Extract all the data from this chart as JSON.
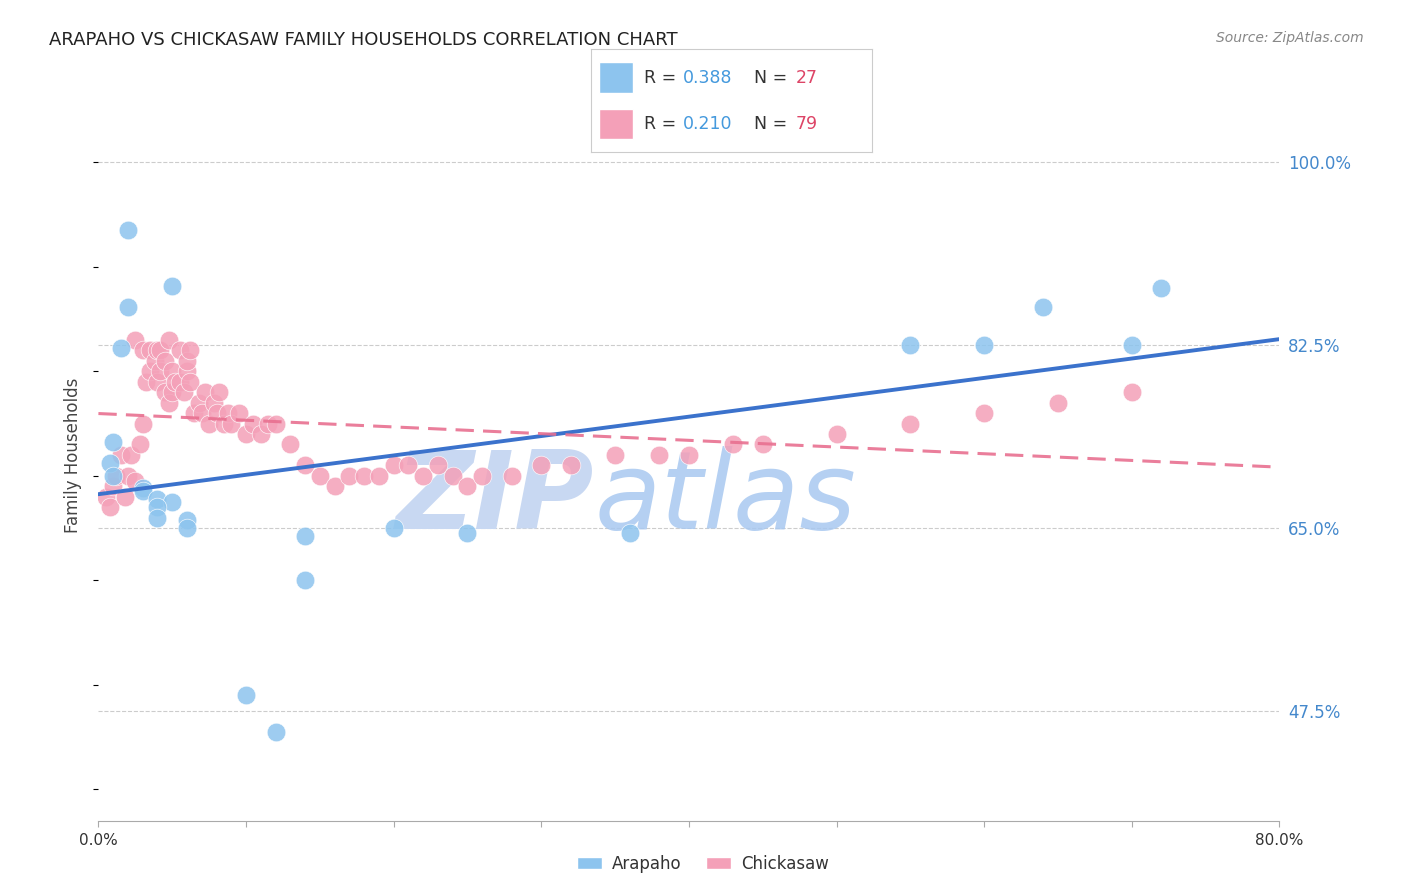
{
  "title": "ARAPAHO VS CHICKASAW FAMILY HOUSEHOLDS CORRELATION CHART",
  "source": "Source: ZipAtlas.com",
  "ylabel": "Family Households",
  "xmin": 0.0,
  "xmax": 0.8,
  "ymin": 0.37,
  "ymax": 1.07,
  "ytick_values": [
    0.475,
    0.65,
    0.825,
    1.0
  ],
  "ytick_labels": [
    "47.5%",
    "65.0%",
    "82.5%",
    "100.0%"
  ],
  "xtick_values": [
    0.0,
    0.1,
    0.2,
    0.3,
    0.4,
    0.5,
    0.6,
    0.7,
    0.8
  ],
  "xtick_labels": [
    "0.0%",
    "",
    "",
    "",
    "",
    "",
    "",
    "",
    "80.0%"
  ],
  "arapaho_color": "#8DC4EE",
  "chickasaw_color": "#F4A0B8",
  "arapaho_line_color": "#3B72CC",
  "chickasaw_line_color": "#E87090",
  "arapaho_R": 0.388,
  "arapaho_N": 27,
  "chickasaw_R": 0.21,
  "chickasaw_N": 79,
  "legend_R_color": "#4499DD",
  "legend_N_color": "#DD4466",
  "arapaho_x": [
    0.02,
    0.05,
    0.02,
    0.015,
    0.01,
    0.008,
    0.01,
    0.03,
    0.03,
    0.04,
    0.05,
    0.04,
    0.04,
    0.06,
    0.06,
    0.14,
    0.14,
    0.2,
    0.55,
    0.6,
    0.64,
    0.7,
    0.72,
    0.1,
    0.12,
    0.25,
    0.36
  ],
  "arapaho_y": [
    0.935,
    0.882,
    0.862,
    0.822,
    0.732,
    0.712,
    0.7,
    0.688,
    0.685,
    0.678,
    0.675,
    0.67,
    0.66,
    0.658,
    0.65,
    0.642,
    0.6,
    0.65,
    0.825,
    0.825,
    0.862,
    0.825,
    0.88,
    0.49,
    0.455,
    0.645,
    0.645
  ],
  "chickasaw_x": [
    0.005,
    0.008,
    0.01,
    0.012,
    0.015,
    0.018,
    0.02,
    0.022,
    0.025,
    0.025,
    0.028,
    0.03,
    0.03,
    0.032,
    0.035,
    0.035,
    0.038,
    0.04,
    0.04,
    0.042,
    0.042,
    0.045,
    0.045,
    0.048,
    0.048,
    0.05,
    0.05,
    0.052,
    0.055,
    0.055,
    0.058,
    0.06,
    0.06,
    0.062,
    0.062,
    0.065,
    0.068,
    0.07,
    0.072,
    0.075,
    0.078,
    0.08,
    0.082,
    0.085,
    0.088,
    0.09,
    0.095,
    0.1,
    0.105,
    0.11,
    0.115,
    0.12,
    0.13,
    0.14,
    0.15,
    0.16,
    0.17,
    0.18,
    0.19,
    0.2,
    0.21,
    0.22,
    0.23,
    0.24,
    0.25,
    0.26,
    0.28,
    0.3,
    0.32,
    0.35,
    0.38,
    0.4,
    0.43,
    0.45,
    0.5,
    0.55,
    0.6,
    0.65,
    0.7
  ],
  "chickasaw_y": [
    0.68,
    0.67,
    0.69,
    0.7,
    0.72,
    0.68,
    0.7,
    0.72,
    0.83,
    0.695,
    0.73,
    0.75,
    0.82,
    0.79,
    0.82,
    0.8,
    0.81,
    0.79,
    0.82,
    0.82,
    0.8,
    0.81,
    0.78,
    0.77,
    0.83,
    0.78,
    0.8,
    0.79,
    0.79,
    0.82,
    0.78,
    0.8,
    0.81,
    0.79,
    0.82,
    0.76,
    0.77,
    0.76,
    0.78,
    0.75,
    0.77,
    0.76,
    0.78,
    0.75,
    0.76,
    0.75,
    0.76,
    0.74,
    0.75,
    0.74,
    0.75,
    0.75,
    0.73,
    0.71,
    0.7,
    0.69,
    0.7,
    0.7,
    0.7,
    0.71,
    0.71,
    0.7,
    0.71,
    0.7,
    0.69,
    0.7,
    0.7,
    0.71,
    0.71,
    0.72,
    0.72,
    0.72,
    0.73,
    0.73,
    0.74,
    0.75,
    0.76,
    0.77,
    0.78
  ]
}
